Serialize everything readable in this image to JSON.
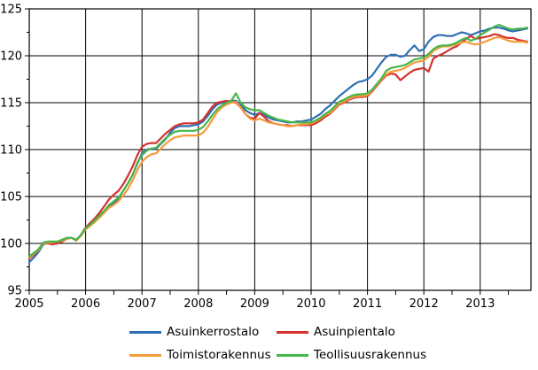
{
  "chart_data": {
    "type": "line",
    "title": "",
    "xlabel": "",
    "ylabel": "",
    "ylim": [
      95,
      125
    ],
    "grid": true,
    "legend_position": "bottom",
    "x_start_year": 2005,
    "x_months": 107,
    "x_ticks": [
      2005,
      2006,
      2007,
      2008,
      2009,
      2010,
      2011,
      2012,
      2013
    ],
    "y_ticks": [
      95,
      100,
      105,
      110,
      115,
      120,
      125
    ],
    "x_minor_tick_interval": 0.5,
    "y_minor_tick_interval": 2.5,
    "series": [
      {
        "name": "Asuinkerrostalo",
        "color": "#2e6eb5",
        "values": [
          98.0,
          98.5,
          99.1,
          99.9,
          100.1,
          100.1,
          100.2,
          100.3,
          100.5,
          100.6,
          100.3,
          100.9,
          101.6,
          102.0,
          102.4,
          102.8,
          103.3,
          103.9,
          104.3,
          104.8,
          105.6,
          106.4,
          107.3,
          108.5,
          109.6,
          110.0,
          110.1,
          110.1,
          110.6,
          111.1,
          111.8,
          112.3,
          112.5,
          112.5,
          112.5,
          112.6,
          112.7,
          113.0,
          113.6,
          114.3,
          114.8,
          115.0,
          115.1,
          115.2,
          115.2,
          114.8,
          114.2,
          113.9,
          113.7,
          113.9,
          113.7,
          113.4,
          113.2,
          113.1,
          113.0,
          112.9,
          112.9,
          113.0,
          113.0,
          113.1,
          113.2,
          113.5,
          113.8,
          114.3,
          114.7,
          115.2,
          115.7,
          116.1,
          116.5,
          116.9,
          117.2,
          117.3,
          117.5,
          117.9,
          118.6,
          119.3,
          119.9,
          120.1,
          120.1,
          119.9,
          120.0,
          120.6,
          121.1,
          120.5,
          120.7,
          121.5,
          122.0,
          122.2,
          122.2,
          122.1,
          122.1,
          122.3,
          122.5,
          122.4,
          122.2,
          122.4,
          122.6,
          122.7,
          122.9,
          123.0,
          123.0,
          122.9,
          122.7,
          122.6,
          122.7,
          122.8,
          122.9
        ]
      },
      {
        "name": "Asuinpientalo",
        "color": "#d4322e",
        "values": [
          98.4,
          98.8,
          99.3,
          100.0,
          100.0,
          99.9,
          100.0,
          100.2,
          100.5,
          100.6,
          100.3,
          100.9,
          101.7,
          102.2,
          102.7,
          103.3,
          104.0,
          104.7,
          105.2,
          105.6,
          106.3,
          107.2,
          108.2,
          109.4,
          110.3,
          110.6,
          110.7,
          110.7,
          111.2,
          111.7,
          112.1,
          112.5,
          112.7,
          112.8,
          112.8,
          112.8,
          112.9,
          113.2,
          113.9,
          114.6,
          115.0,
          115.1,
          115.2,
          115.1,
          115.0,
          114.5,
          113.8,
          113.4,
          113.3,
          113.9,
          113.5,
          113.0,
          112.8,
          112.7,
          112.6,
          112.6,
          112.5,
          112.6,
          112.6,
          112.6,
          112.6,
          112.8,
          113.1,
          113.5,
          113.8,
          114.3,
          114.8,
          115.0,
          115.3,
          115.5,
          115.6,
          115.6,
          115.7,
          116.2,
          116.8,
          117.4,
          117.9,
          118.1,
          118.0,
          117.4,
          117.8,
          118.2,
          118.5,
          118.6,
          118.7,
          118.3,
          119.7,
          120.0,
          120.2,
          120.5,
          120.8,
          121.0,
          121.4,
          121.8,
          122.1,
          121.8,
          121.9,
          122.0,
          122.1,
          122.3,
          122.2,
          122.0,
          121.9,
          121.9,
          121.7,
          121.6,
          121.5
        ]
      },
      {
        "name": "Toimistorakennus",
        "color": "#f59b3a",
        "values": [
          98.5,
          98.9,
          99.3,
          100.0,
          100.1,
          100.1,
          100.2,
          100.3,
          100.5,
          100.6,
          100.3,
          100.8,
          101.5,
          101.9,
          102.3,
          102.8,
          103.3,
          103.8,
          104.1,
          104.5,
          105.1,
          105.8,
          106.7,
          107.8,
          108.7,
          109.2,
          109.5,
          109.6,
          110.1,
          110.6,
          111.0,
          111.3,
          111.4,
          111.5,
          111.5,
          111.5,
          111.5,
          111.8,
          112.4,
          113.2,
          114.0,
          114.5,
          114.8,
          115.0,
          115.1,
          114.5,
          113.8,
          113.3,
          113.1,
          113.3,
          113.1,
          112.9,
          112.8,
          112.7,
          112.6,
          112.5,
          112.5,
          112.6,
          112.7,
          112.7,
          112.8,
          113.0,
          113.3,
          113.7,
          113.9,
          114.4,
          114.9,
          115.1,
          115.4,
          115.6,
          115.7,
          115.7,
          115.8,
          116.3,
          116.9,
          117.5,
          118.0,
          118.3,
          118.4,
          118.5,
          118.7,
          119.0,
          119.3,
          119.4,
          119.5,
          119.9,
          120.5,
          120.8,
          121.0,
          121.0,
          121.1,
          121.2,
          121.4,
          121.5,
          121.3,
          121.2,
          121.3,
          121.5,
          121.7,
          121.9,
          122.0,
          121.8,
          121.6,
          121.5,
          121.5,
          121.5,
          121.4
        ]
      },
      {
        "name": "Teollisuusrakennus",
        "color": "#45b649",
        "values": [
          98.6,
          99.0,
          99.4,
          100.1,
          100.2,
          100.2,
          100.2,
          100.4,
          100.6,
          100.6,
          100.4,
          100.9,
          101.6,
          102.0,
          102.5,
          103.0,
          103.5,
          104.1,
          104.5,
          104.9,
          105.6,
          106.4,
          107.3,
          108.6,
          109.4,
          109.9,
          110.1,
          110.2,
          110.7,
          111.2,
          111.6,
          111.9,
          112.0,
          112.0,
          112.0,
          112.0,
          112.1,
          112.4,
          113.0,
          113.7,
          114.3,
          114.7,
          115.0,
          115.2,
          116.0,
          115.0,
          114.5,
          114.3,
          114.2,
          114.2,
          113.9,
          113.6,
          113.4,
          113.2,
          113.1,
          113.0,
          112.9,
          112.9,
          112.9,
          112.9,
          112.9,
          113.1,
          113.4,
          113.8,
          114.1,
          114.6,
          115.1,
          115.3,
          115.6,
          115.8,
          115.9,
          115.9,
          116.0,
          116.4,
          117.0,
          117.6,
          118.4,
          118.7,
          118.8,
          118.9,
          119.0,
          119.3,
          119.6,
          119.7,
          119.8,
          120.2,
          120.7,
          121.0,
          121.1,
          121.1,
          121.2,
          121.4,
          121.7,
          121.9,
          121.6,
          121.8,
          122.2,
          122.5,
          122.8,
          123.1,
          123.3,
          123.1,
          122.9,
          122.8,
          122.9,
          122.9,
          123.0
        ]
      }
    ],
    "colors": {
      "grid": "#000000",
      "axis": "#000000",
      "background": "#ffffff"
    }
  }
}
